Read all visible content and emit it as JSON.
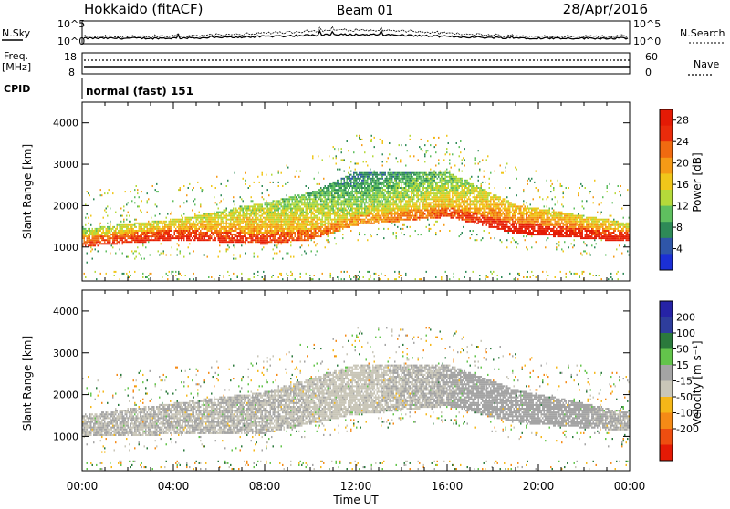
{
  "header": {
    "radar": "Hokkaido (fitACF)",
    "beam": "Beam 01",
    "date": "28/Apr/2016"
  },
  "strips": {
    "nsky_label": "N.Sky",
    "nsearch_label": "N.Search",
    "noise_ticks": [
      "10^5",
      "10^0"
    ],
    "freq_label": "Freq.",
    "freq_unit": "[MHz]",
    "freq_ticks": [
      "18",
      "8"
    ],
    "nave_label": "Nave",
    "nave_ticks": [
      "60",
      "0"
    ],
    "cpid_label": "CPID",
    "cpid_value": "normal (fast) 151"
  },
  "colors": {
    "power_scale": [
      "#1b2fd6",
      "#2f56a8",
      "#2e8a57",
      "#5fbf5f",
      "#b5d93a",
      "#f0c61a",
      "#f59a16",
      "#f06a10",
      "#ea2b0b",
      "#e41a05"
    ],
    "velocity_scale": [
      "#2623a6",
      "#2e3d9c",
      "#2b7a3c",
      "#63c44b",
      "#a4a4a4",
      "#c9c6b8",
      "#f5b718",
      "#f58a16",
      "#ee4e10",
      "#e41a05"
    ]
  },
  "chart_data": [
    {
      "type": "heatmap",
      "title": "Power",
      "xlabel": "Time UT",
      "ylabel": "Slant Range [km]",
      "x_ticks": [
        "00:00",
        "04:00",
        "08:00",
        "12:00",
        "16:00",
        "20:00",
        "00:00"
      ],
      "xlim_hours": [
        0,
        24
      ],
      "y_ticks": [
        1000,
        2000,
        3000,
        4000
      ],
      "ylim_km": [
        180,
        4500
      ],
      "colorbar_label": "Power [dB]",
      "colorbar_ticks": [
        4,
        8,
        12,
        16,
        20,
        24,
        28
      ],
      "colorbar_range": [
        0,
        30
      ],
      "band_samples": [
        {
          "t": 0,
          "range_km": [
            980,
            1420
          ],
          "power_db": 22
        },
        {
          "t": 4,
          "range_km": [
            1150,
            1650
          ],
          "power_db": 24
        },
        {
          "t": 8,
          "range_km": [
            1050,
            2050
          ],
          "power_db": 22
        },
        {
          "t": 10,
          "range_km": [
            1150,
            2300
          ],
          "power_db": 20
        },
        {
          "t": 12,
          "range_km": [
            1500,
            2800
          ],
          "power_db": 16
        },
        {
          "t": 16,
          "range_km": [
            1700,
            2800
          ],
          "power_db": 20
        },
        {
          "t": 19,
          "range_km": [
            1300,
            2000
          ],
          "power_db": 26
        },
        {
          "t": 24,
          "range_km": [
            1100,
            1550
          ],
          "power_db": 24
        }
      ]
    },
    {
      "type": "heatmap",
      "title": "Velocity",
      "xlabel": "Time UT",
      "ylabel": "Slant Range [km]",
      "x_ticks": [
        "00:00",
        "04:00",
        "08:00",
        "12:00",
        "16:00",
        "20:00",
        "00:00"
      ],
      "xlim_hours": [
        0,
        24
      ],
      "y_ticks": [
        1000,
        2000,
        3000,
        4000
      ],
      "ylim_km": [
        180,
        4500
      ],
      "colorbar_label": "Velocity [m s⁻¹]",
      "colorbar_ticks": [
        "200",
        "100",
        "50",
        "15",
        "-15",
        "-50",
        "-100",
        "-200"
      ],
      "colorbar_range": [
        -250,
        250
      ],
      "band_samples": [
        {
          "t": 0,
          "range_km": [
            980,
            1500
          ],
          "velocity_ms": 0
        },
        {
          "t": 8,
          "range_km": [
            1050,
            2050
          ],
          "velocity_ms": 0
        },
        {
          "t": 12,
          "range_km": [
            1500,
            2700
          ],
          "velocity_ms": -10
        },
        {
          "t": 16,
          "range_km": [
            1700,
            2700
          ],
          "velocity_ms": 5
        },
        {
          "t": 19,
          "range_km": [
            1300,
            2100
          ],
          "velocity_ms": 25
        },
        {
          "t": 24,
          "range_km": [
            1100,
            1550
          ],
          "velocity_ms": 0
        }
      ]
    }
  ]
}
